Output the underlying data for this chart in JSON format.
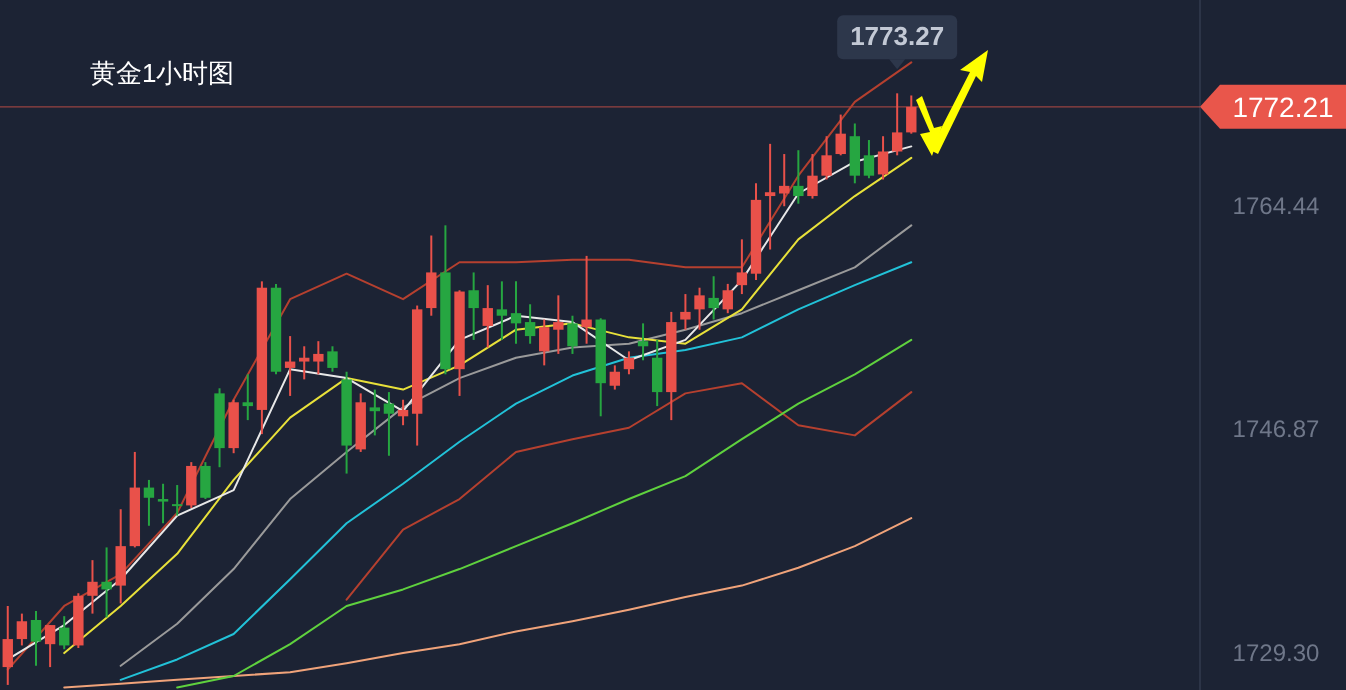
{
  "chart_data": {
    "type": "candlestick",
    "title": "黄金1小时图",
    "categories": [
      null,
      null,
      null,
      null,
      null,
      null,
      null,
      null,
      null,
      null,
      null,
      null,
      null,
      null,
      null,
      null,
      null,
      null,
      null,
      null,
      null,
      null,
      null,
      null,
      null,
      null,
      null,
      null,
      null,
      null,
      null,
      null,
      null,
      null,
      null,
      null,
      null,
      null,
      null,
      null,
      null,
      null,
      null,
      null,
      null,
      null,
      null,
      null,
      null,
      null,
      null,
      null,
      null,
      null,
      null,
      null,
      null,
      null,
      null,
      null,
      null,
      null,
      null,
      null,
      null,
      null,
      null,
      null,
      null,
      null,
      null,
      null,
      null,
      null,
      null,
      null,
      null,
      null,
      null,
      null,
      null,
      null,
      null,
      null,
      null
    ],
    "ohlc": [
      [
        1728.2,
        1733.0,
        1726.8,
        1730.4
      ],
      [
        1730.4,
        1732.4,
        1729.9,
        1731.8
      ],
      [
        1731.9,
        1732.6,
        1728.3,
        1730.2
      ],
      [
        1730.0,
        1731.5,
        1728.2,
        1731.5
      ],
      [
        1731.3,
        1732.2,
        1729.6,
        1729.9
      ],
      [
        1729.9,
        1734.0,
        1729.7,
        1733.8
      ],
      [
        1733.8,
        1736.6,
        1732.4,
        1734.9
      ],
      [
        1734.9,
        1737.6,
        1732.1,
        1734.3
      ],
      [
        1734.6,
        1740.6,
        1733.2,
        1737.7
      ],
      [
        1737.7,
        1745.1,
        1737.6,
        1742.3
      ],
      [
        1742.3,
        1742.9,
        1739.3,
        1741.5
      ],
      [
        1741.4,
        1742.6,
        1739.5,
        1741.2
      ],
      [
        1741.0,
        1742.5,
        1740.1,
        1740.9
      ],
      [
        1740.9,
        1744.3,
        1740.7,
        1744.0
      ],
      [
        1744.0,
        1744.3,
        1741.4,
        1741.5
      ],
      [
        1749.7,
        1750.1,
        1743.9,
        1745.4
      ],
      [
        1745.4,
        1749.2,
        1745.0,
        1749.0
      ],
      [
        1749.0,
        1751.2,
        1747.6,
        1748.7
      ],
      [
        1748.4,
        1758.5,
        1746.5,
        1758.0
      ],
      [
        1758.0,
        1758.3,
        1751.2,
        1751.4
      ],
      [
        1751.7,
        1754.2,
        1749.5,
        1752.2
      ],
      [
        1752.2,
        1753.4,
        1750.8,
        1752.5
      ],
      [
        1752.2,
        1753.8,
        1751.2,
        1752.8
      ],
      [
        1753.0,
        1753.4,
        1751.4,
        1751.7
      ],
      [
        1750.8,
        1751.4,
        1743.4,
        1745.6
      ],
      [
        1745.3,
        1749.7,
        1745.1,
        1749.0
      ],
      [
        1748.6,
        1750.0,
        1746.4,
        1748.3
      ],
      [
        1748.9,
        1749.8,
        1744.8,
        1748.1
      ],
      [
        1747.9,
        1749.2,
        1747.2,
        1748.4
      ],
      [
        1748.1,
        1756.6,
        1745.6,
        1756.3
      ],
      [
        1756.4,
        1762.1,
        1755.8,
        1759.2
      ],
      [
        1759.2,
        1762.9,
        1751.2,
        1751.6
      ],
      [
        1751.6,
        1757.8,
        1749.5,
        1757.7
      ],
      [
        1757.8,
        1759.2,
        1753.9,
        1756.4
      ],
      [
        1755.0,
        1758.2,
        1753.3,
        1756.4
      ],
      [
        1756.3,
        1758.5,
        1753.9,
        1755.8
      ],
      [
        1756.0,
        1758.5,
        1753.6,
        1755.2
      ],
      [
        1755.3,
        1756.7,
        1753.6,
        1754.2
      ],
      [
        1753.0,
        1755.5,
        1751.9,
        1754.9
      ],
      [
        1754.7,
        1757.4,
        1752.8,
        1755.3
      ],
      [
        1755.2,
        1755.8,
        1752.8,
        1753.4
      ],
      [
        1754.9,
        1760.5,
        1753.6,
        1755.5
      ],
      [
        1755.5,
        1755.6,
        1747.9,
        1750.5
      ],
      [
        1750.3,
        1751.9,
        1750.0,
        1751.4
      ],
      [
        1751.6,
        1753.0,
        1751.2,
        1752.5
      ],
      [
        1753.8,
        1755.2,
        1752.3,
        1753.4
      ],
      [
        1752.5,
        1753.9,
        1748.7,
        1749.8
      ],
      [
        1749.8,
        1756.1,
        1747.6,
        1755.3
      ],
      [
        1755.5,
        1757.5,
        1754.7,
        1756.1
      ],
      [
        1756.3,
        1758.0,
        1754.7,
        1757.4
      ],
      [
        1757.2,
        1758.9,
        1755.5,
        1756.4
      ],
      [
        1756.3,
        1758.3,
        1756.0,
        1757.8
      ],
      [
        1758.2,
        1761.8,
        1757.5,
        1759.2
      ],
      [
        1759.1,
        1766.2,
        1758.6,
        1764.9
      ],
      [
        1765.2,
        1769.3,
        1761.0,
        1765.5
      ],
      [
        1765.4,
        1768.5,
        1764.4,
        1766.0
      ],
      [
        1766.0,
        1768.8,
        1764.6,
        1765.2
      ],
      [
        1765.2,
        1768.5,
        1765.0,
        1766.8
      ],
      [
        1766.8,
        1769.9,
        1766.5,
        1768.4
      ],
      [
        1768.5,
        1771.6,
        1768.4,
        1770.1
      ],
      [
        1769.9,
        1770.9,
        1766.2,
        1766.8
      ],
      [
        1768.4,
        1769.6,
        1766.6,
        1766.8
      ],
      [
        1766.9,
        1769.9,
        1766.5,
        1768.7
      ],
      [
        1768.7,
        1773.27,
        1768.4,
        1770.2
      ],
      [
        1770.2,
        1773.1,
        1770.1,
        1772.21
      ],
      null,
      null,
      null,
      null,
      null,
      null,
      null,
      null,
      null,
      null,
      null,
      null,
      null,
      null,
      null,
      null,
      null,
      null,
      null,
      null
    ],
    "colors": [
      "#e9514a",
      "#e9514a",
      "#26a641",
      "#e9514a",
      "#26a641",
      "#e9514a",
      "#e9514a",
      "#26a641",
      "#e9514a",
      "#e9514a",
      "#26a641",
      "#26a641",
      "#26a641",
      "#e9514a",
      "#26a641",
      "#26a641",
      "#e9514a",
      "#26a641",
      "#e9514a",
      "#26a641",
      "#e9514a",
      "#e9514a",
      "#e9514a",
      "#26a641",
      "#26a641",
      "#e9514a",
      "#26a641",
      "#26a641",
      "#e9514a",
      "#e9514a",
      "#e9514a",
      "#26a641",
      "#e9514a",
      "#26a641",
      "#e9514a",
      "#26a641",
      "#26a641",
      "#26a641",
      "#e9514a",
      "#e9514a",
      "#26a641",
      "#e9514a",
      "#26a641",
      "#e9514a",
      "#e9514a",
      "#26a641",
      "#26a641",
      "#e9514a",
      "#e9514a",
      "#e9514a",
      "#26a641",
      "#e9514a",
      "#e9514a",
      "#e9514a",
      "#e9514a",
      "#e9514a",
      "#26a641",
      "#e9514a",
      "#e9514a",
      "#e9514a",
      "#26a641",
      "#26a641",
      "#e9514a",
      "#e9514a",
      "#e9514a",
      null,
      null,
      null,
      null,
      null,
      null,
      null,
      null,
      null,
      null,
      null,
      null,
      null,
      null,
      null,
      null,
      null,
      null,
      null,
      null
    ],
    "series": [
      {
        "type": "line",
        "color": "#b5402f",
        "values": [
          1728.0,
          null,
          null,
          null,
          1733.0,
          null,
          null,
          null,
          1735.5,
          null,
          null,
          null,
          1740.3,
          null,
          null,
          null,
          1749.2,
          null,
          null,
          null,
          1757.1,
          null,
          null,
          null,
          1759.1,
          null,
          null,
          null,
          1757.1,
          null,
          null,
          null,
          1760.0,
          null,
          null,
          null,
          1760.0,
          null,
          null,
          null,
          1760.2,
          null,
          null,
          null,
          1760.2,
          null,
          null,
          null,
          1759.6,
          null,
          null,
          null,
          1759.6,
          null,
          null,
          null,
          1766.8,
          null,
          null,
          null,
          1772.6,
          null,
          null,
          null,
          1775.7,
          null,
          null,
          null,
          null,
          null,
          null,
          null,
          null,
          null,
          null,
          null,
          null,
          null,
          null,
          null,
          null,
          null,
          null,
          null,
          null
        ]
      },
      {
        "type": "line",
        "color": "#b5402f",
        "values": [
          null,
          null,
          null,
          null,
          null,
          null,
          null,
          null,
          null,
          null,
          null,
          null,
          null,
          null,
          null,
          null,
          null,
          null,
          null,
          null,
          null,
          null,
          null,
          null,
          1733.5,
          null,
          null,
          null,
          1739.0,
          null,
          null,
          null,
          1741.4,
          null,
          null,
          null,
          1745.1,
          null,
          null,
          null,
          1746.1,
          null,
          null,
          null,
          1747.0,
          null,
          null,
          null,
          1749.7,
          null,
          null,
          null,
          1750.5,
          null,
          null,
          null,
          1747.2,
          null,
          null,
          null,
          1746.4,
          null,
          null,
          null,
          1749.8,
          null,
          null,
          null,
          null,
          null,
          null,
          null,
          null,
          null,
          null,
          null,
          null,
          null,
          null,
          null,
          null,
          null,
          null,
          null,
          null
        ]
      },
      {
        "type": "line",
        "color": "#f0a37a",
        "values": [
          null,
          null,
          null,
          null,
          1726.6,
          null,
          null,
          null,
          1726.9,
          null,
          null,
          null,
          1727.2,
          null,
          null,
          null,
          1727.5,
          null,
          null,
          null,
          1727.8,
          null,
          null,
          null,
          1728.5,
          null,
          null,
          null,
          1729.3,
          null,
          null,
          null,
          1730.0,
          null,
          null,
          null,
          1731.0,
          null,
          null,
          null,
          1731.8,
          null,
          null,
          null,
          1732.7,
          null,
          null,
          null,
          1733.7,
          null,
          null,
          null,
          1734.6,
          null,
          null,
          null,
          1736.0,
          null,
          null,
          null,
          1737.7,
          null,
          null,
          null,
          1739.9,
          null,
          null,
          null,
          null,
          null,
          null,
          null,
          null,
          null,
          null,
          null,
          null,
          null,
          null,
          null,
          null,
          null,
          null,
          null,
          null
        ]
      },
      {
        "type": "line",
        "color": "#5fd13e",
        "values": [
          null,
          null,
          null,
          null,
          null,
          null,
          null,
          null,
          null,
          null,
          null,
          null,
          1726.6,
          null,
          null,
          null,
          1727.5,
          null,
          null,
          null,
          1730.0,
          null,
          null,
          null,
          1733.0,
          null,
          null,
          null,
          1734.3,
          null,
          null,
          null,
          1735.9,
          null,
          null,
          null,
          1737.7,
          null,
          null,
          null,
          1739.5,
          null,
          null,
          null,
          1741.4,
          null,
          null,
          null,
          1743.2,
          null,
          null,
          null,
          1746.1,
          null,
          null,
          null,
          1748.9,
          null,
          null,
          null,
          1751.2,
          null,
          null,
          null,
          1753.9,
          null,
          null,
          null,
          null,
          null,
          null,
          null,
          null,
          null,
          null,
          null,
          null,
          null,
          null,
          null,
          null,
          null,
          null,
          null,
          null
        ]
      },
      {
        "type": "line",
        "color": "#22c2d8",
        "values": [
          null,
          null,
          null,
          null,
          null,
          null,
          null,
          null,
          1727.2,
          null,
          null,
          null,
          1728.8,
          null,
          null,
          null,
          1730.8,
          null,
          null,
          null,
          1735.1,
          null,
          null,
          null,
          1739.5,
          null,
          null,
          null,
          1742.6,
          null,
          null,
          null,
          1745.9,
          null,
          null,
          null,
          1748.9,
          null,
          null,
          null,
          1751.1,
          null,
          null,
          null,
          1752.5,
          null,
          null,
          null,
          1753.1,
          null,
          null,
          null,
          1754.1,
          null,
          null,
          null,
          1756.3,
          null,
          null,
          null,
          1758.2,
          null,
          null,
          null,
          1760.0,
          null,
          null,
          null,
          null,
          null,
          null,
          null,
          null,
          null,
          null,
          null,
          null,
          null,
          null,
          null,
          null,
          null,
          null,
          null,
          null
        ]
      },
      {
        "type": "line",
        "color": "#9a9a9a",
        "values": [
          null,
          null,
          null,
          null,
          null,
          null,
          null,
          null,
          1728.3,
          null,
          null,
          null,
          1731.6,
          null,
          null,
          null,
          1735.9,
          null,
          null,
          null,
          1741.4,
          null,
          null,
          null,
          1745.1,
          null,
          null,
          null,
          1748.6,
          null,
          null,
          null,
          1750.9,
          null,
          null,
          null,
          1752.5,
          null,
          null,
          null,
          1753.3,
          null,
          null,
          null,
          1753.6,
          null,
          null,
          null,
          1754.7,
          null,
          null,
          null,
          1756.0,
          null,
          null,
          null,
          1757.8,
          null,
          null,
          null,
          1759.6,
          null,
          null,
          null,
          1762.9,
          null,
          null,
          null,
          null,
          null,
          null,
          null,
          null,
          null,
          null,
          null,
          null,
          null,
          null,
          null,
          null,
          null,
          null,
          null,
          null
        ]
      },
      {
        "type": "line",
        "color": "#e8e13a",
        "values": [
          null,
          null,
          null,
          null,
          1729.3,
          null,
          null,
          null,
          1733.0,
          null,
          null,
          null,
          1737.1,
          null,
          null,
          null,
          1742.9,
          null,
          null,
          null,
          1747.8,
          null,
          null,
          null,
          1750.9,
          null,
          null,
          null,
          1750.0,
          null,
          null,
          null,
          1751.9,
          null,
          null,
          null,
          1754.7,
          null,
          null,
          null,
          1755.2,
          null,
          null,
          null,
          1754.1,
          null,
          null,
          null,
          1753.6,
          null,
          null,
          null,
          1756.3,
          null,
          null,
          null,
          1761.8,
          null,
          null,
          null,
          1765.2,
          null,
          null,
          null,
          1768.2,
          null,
          null,
          null,
          null,
          null,
          null,
          null,
          null,
          null,
          null,
          null,
          null,
          null,
          null,
          null,
          null,
          null,
          null,
          null,
          null
        ]
      },
      {
        "type": "line",
        "color": "#e8e8e8",
        "values": [
          1728.8,
          null,
          null,
          null,
          1731.5,
          null,
          null,
          null,
          1735.1,
          null,
          null,
          null,
          1740.1,
          null,
          null,
          null,
          1742.1,
          null,
          null,
          null,
          1751.6,
          null,
          null,
          null,
          1750.9,
          null,
          null,
          null,
          1748.3,
          null,
          null,
          null,
          1753.9,
          null,
          null,
          null,
          1755.8,
          null,
          null,
          null,
          1755.3,
          null,
          null,
          null,
          1752.3,
          null,
          null,
          null,
          1753.9,
          null,
          null,
          null,
          1758.6,
          null,
          null,
          null,
          1765.4,
          null,
          null,
          null,
          1767.9,
          null,
          null,
          null,
          1769.1,
          null,
          null,
          null,
          null,
          null,
          null,
          null,
          null,
          null,
          null,
          null,
          null,
          null,
          null,
          null,
          null,
          null,
          null,
          null,
          null
        ]
      }
    ],
    "ylim": [
      1726.4,
      1780.6
    ],
    "yticks": [
      {
        "value": 1729.3,
        "label": "1729.30"
      },
      {
        "value": 1746.87,
        "label": "1746.87"
      },
      {
        "value": 1764.44,
        "label": "1764.44"
      }
    ],
    "tick_labels": "y",
    "ref_lines": [
      {
        "axis": "y",
        "value": 1772.21,
        "label": "1772.21",
        "color": "#e9564b"
      }
    ],
    "annotations": [
      "1773.27"
    ]
  }
}
